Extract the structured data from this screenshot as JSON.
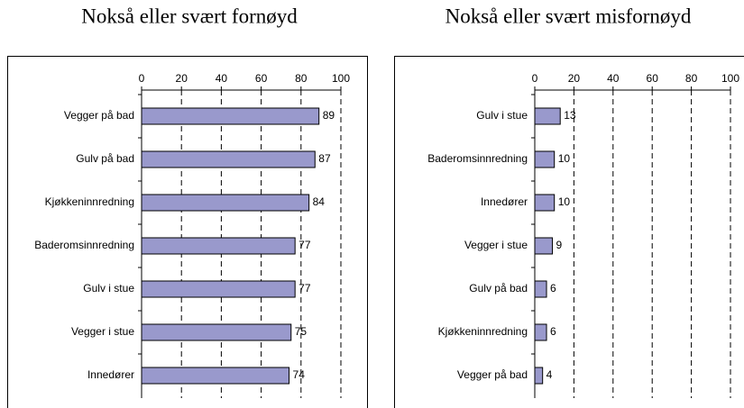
{
  "chart_data": [
    {
      "type": "barh",
      "title": "Nokså eller svært fornøyd",
      "categories": [
        "Vegger på bad",
        "Gulv på bad",
        "Kjøkkeninnredning",
        "Baderomsinnredning",
        "Gulv i stue",
        "Vegger i stue",
        "Innedører"
      ],
      "values": [
        89,
        87,
        84,
        77,
        77,
        75,
        74
      ],
      "color": "#9999cc",
      "xlim": [
        0,
        100
      ],
      "xticks": [
        0,
        20,
        40,
        60,
        80,
        100
      ],
      "grid": true
    },
    {
      "type": "barh",
      "title": "Nokså eller svært misfornøyd",
      "categories": [
        "Gulv i stue",
        "Baderomsinnredning",
        "Innedører",
        "Vegger i stue",
        "Gulv på bad",
        "Kjøkkeninnredning",
        "Vegger på bad"
      ],
      "values": [
        13,
        10,
        10,
        9,
        6,
        6,
        4
      ],
      "color": "#9999cc",
      "xlim": [
        0,
        100
      ],
      "xticks": [
        0,
        20,
        40,
        60,
        80,
        100
      ],
      "grid": true
    }
  ]
}
